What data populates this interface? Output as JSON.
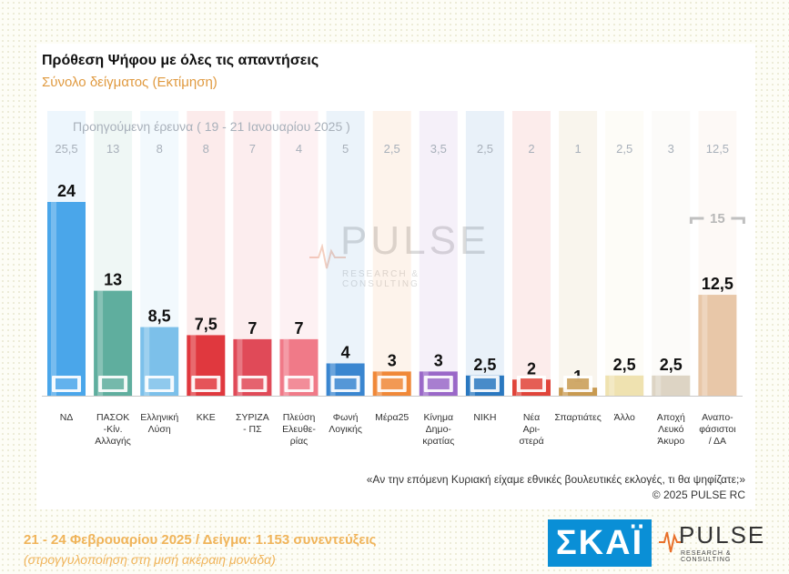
{
  "title": "Πρόθεση Ψήφου με όλες τις απαντήσεις",
  "subtitle": "Σύνολο δείγματος   (Εκτίμηση)",
  "previous_caption": "Προηγούμενη έρευνα ( 19 - 21 Ιανουαρίου 2025 )",
  "question": "«Αν την επόμενη Κυριακή είχαμε εθνικές βουλευτικές εκλογές, τι θα ψηφίζατε;»",
  "copyright": "©  2025  PULSE RC",
  "footer": {
    "date_sample": "21 - 24 Φεβρουαρίου 2025  /  Δείγμα:  1.153 συνεντεύξεις",
    "rounding_note": "(στρογγυλοποίηση στη μισή ακέραιη μονάδα)"
  },
  "logos": {
    "skai": "ΣΚΑΪ",
    "pulse": "PULSE",
    "pulse_sub": "RESEARCH & CONSULTING"
  },
  "chart_data": {
    "type": "bar",
    "categories": [
      [
        "ΝΔ"
      ],
      [
        "ΠΑΣΟΚ",
        "-Κίν.",
        "Αλλαγής"
      ],
      [
        "Ελληνική",
        "Λύση"
      ],
      [
        "ΚΚΕ"
      ],
      [
        "ΣΥΡΙΖΑ",
        "- ΠΣ"
      ],
      [
        "Πλεύση",
        "Ελευθε-",
        "ρίας"
      ],
      [
        "Φωνή",
        "Λογικής"
      ],
      [
        "Μέρα25"
      ],
      [
        "Κίνημα",
        "Δημο-",
        "κρατίας"
      ],
      [
        "ΝΙΚΗ"
      ],
      [
        "Νέα",
        "Αρι-",
        "στερά"
      ],
      [
        "Σπαρτιάτες"
      ],
      [
        "Άλλο"
      ],
      [
        "Αποχή",
        "Λευκό",
        "Άκυρο"
      ],
      [
        "Αναπο-",
        "φάσιστοι",
        "/ ΔΑ"
      ]
    ],
    "values": [
      24,
      13,
      8.5,
      7.5,
      7,
      7,
      4,
      3,
      3,
      2.5,
      2,
      1,
      2.5,
      2.5,
      12.5
    ],
    "value_labels": [
      "24",
      "13",
      "8,5",
      "7,5",
      "7",
      "7",
      "4",
      "3",
      "3",
      "2,5",
      "2",
      "1",
      "2,5",
      "2,5",
      "12,5"
    ],
    "previous_values": [
      25.5,
      13,
      8,
      8,
      7,
      4,
      5,
      2.5,
      3.5,
      2.5,
      2,
      1,
      2.5,
      3,
      12.5
    ],
    "previous_labels": [
      "25,5",
      "13",
      "8",
      "8",
      "7",
      "4",
      "5",
      "2,5",
      "3,5",
      "2,5",
      "2",
      "1",
      "2,5",
      "3",
      "12,5"
    ],
    "bracket_label": "15",
    "colors": [
      "#4aa6ea",
      "#5fae9e",
      "#7cc0ea",
      "#e0383e",
      "#e04a58",
      "#f07a88",
      "#3a86d0",
      "#f08838",
      "#9a68c8",
      "#2a78c0",
      "#e0443a",
      "#c89a50",
      "#efe2b0",
      "#ddd4c4",
      "#e8c7a8"
    ],
    "legend_icons": [
      "nd-logo-icon",
      "pasok-logo-icon",
      "elliniki-lysi-logo-icon",
      "kke-logo-icon",
      "syriza-logo-icon",
      "plefsi-logo-icon",
      "foni-logikis-logo-icon",
      "mera25-logo-icon",
      "kinima-logo-icon",
      "niki-logo-icon",
      "nea-aristera-logo-icon",
      "spartiates-logo-icon"
    ],
    "ylim": [
      0,
      26
    ],
    "xlabel": "",
    "ylabel": ""
  }
}
